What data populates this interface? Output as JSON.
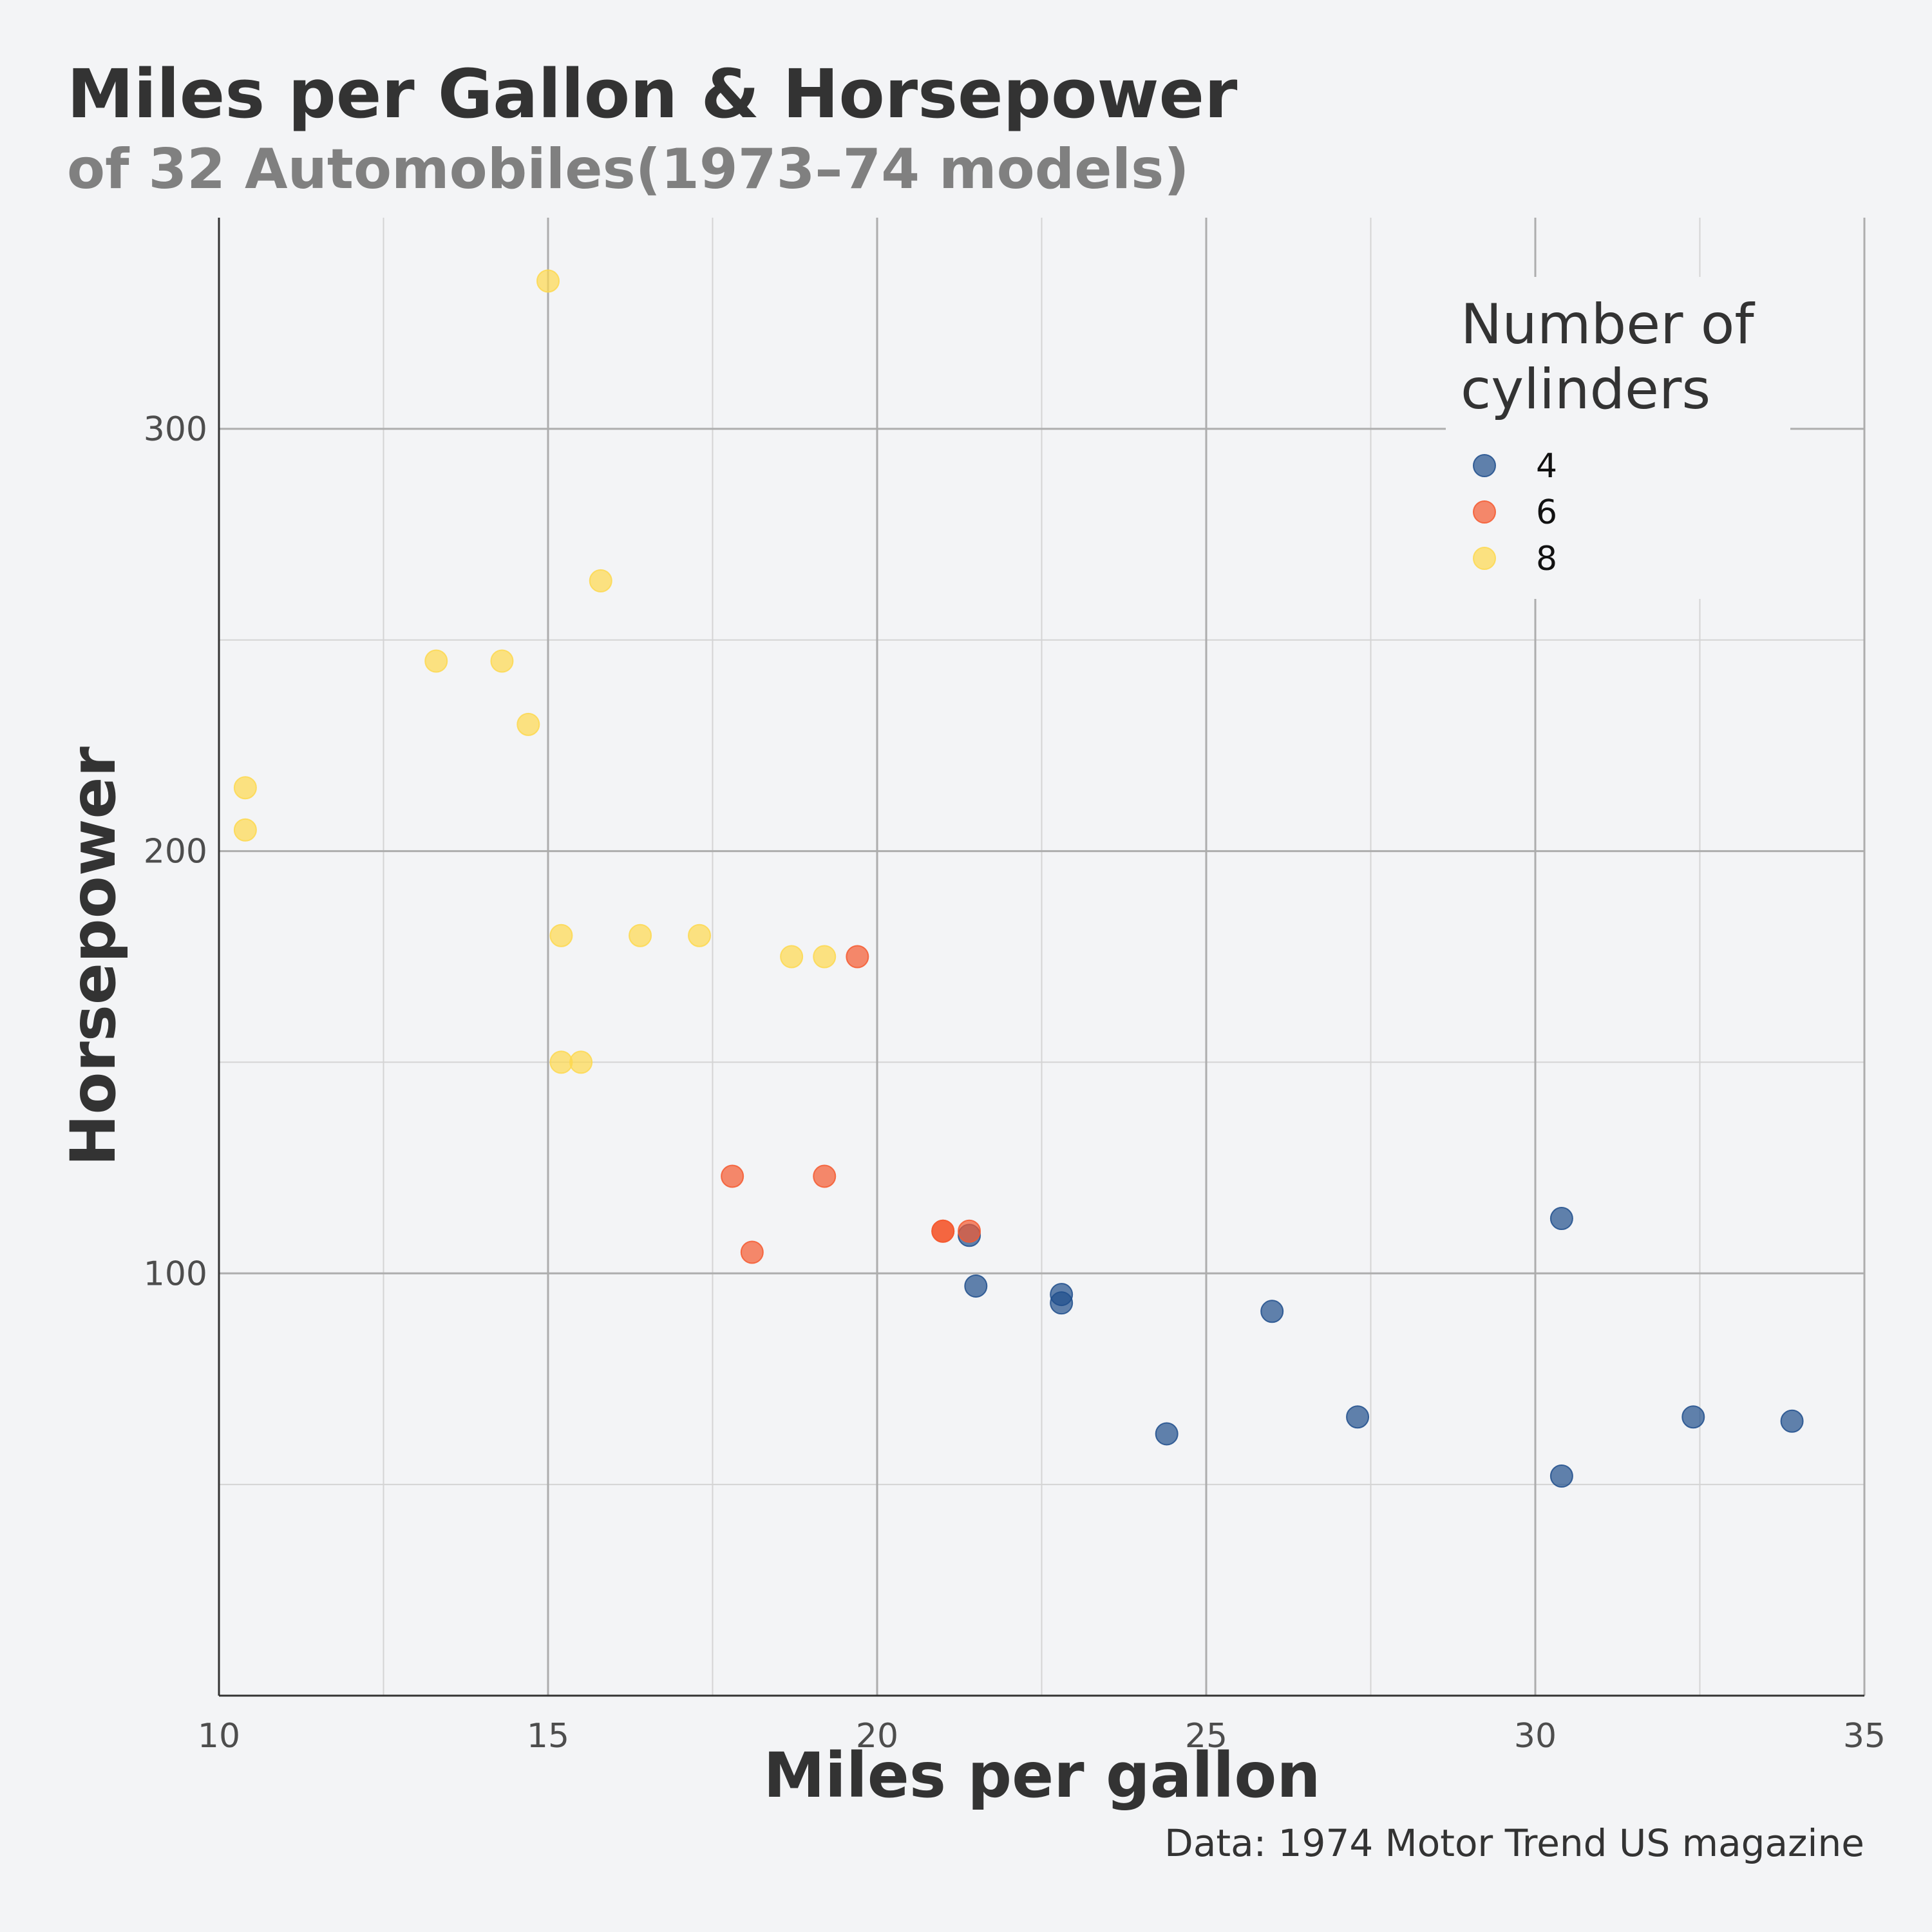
{
  "chart_data": {
    "type": "scatter",
    "title": "Miles per Gallon & Horsepower",
    "subtitle": "of 32 Automobiles(1973–74 models)",
    "xlabel": "Miles per gallon",
    "ylabel": "Horsepower",
    "caption": "Data: 1974 Motor Trend US magazine",
    "xlim": [
      10,
      35
    ],
    "ylim": [
      0,
      350
    ],
    "x_ticks": [
      10,
      15,
      20,
      25,
      30,
      35
    ],
    "y_ticks": [
      100,
      200,
      300
    ],
    "grid": true,
    "legend": {
      "title_lines": [
        "Number of",
        "cylinders"
      ],
      "placement": "top-right"
    },
    "series": [
      {
        "name": "4",
        "color": "#1f4e8c",
        "points": [
          {
            "x": 22.8,
            "y": 93
          },
          {
            "x": 24.4,
            "y": 62
          },
          {
            "x": 22.8,
            "y": 95
          },
          {
            "x": 32.4,
            "y": 66
          },
          {
            "x": 30.4,
            "y": 52
          },
          {
            "x": 33.9,
            "y": 65
          },
          {
            "x": 21.5,
            "y": 97
          },
          {
            "x": 27.3,
            "y": 66
          },
          {
            "x": 26.0,
            "y": 91
          },
          {
            "x": 30.4,
            "y": 113
          },
          {
            "x": 21.4,
            "y": 109
          }
        ]
      },
      {
        "name": "6",
        "color": "#f4592f",
        "points": [
          {
            "x": 21.0,
            "y": 110
          },
          {
            "x": 21.0,
            "y": 110
          },
          {
            "x": 21.4,
            "y": 110
          },
          {
            "x": 18.1,
            "y": 105
          },
          {
            "x": 19.2,
            "y": 123
          },
          {
            "x": 17.8,
            "y": 123
          },
          {
            "x": 19.7,
            "y": 175
          }
        ]
      },
      {
        "name": "8",
        "color": "#fdd84f",
        "points": [
          {
            "x": 18.7,
            "y": 175
          },
          {
            "x": 14.3,
            "y": 245
          },
          {
            "x": 16.4,
            "y": 180
          },
          {
            "x": 17.3,
            "y": 180
          },
          {
            "x": 15.2,
            "y": 180
          },
          {
            "x": 10.4,
            "y": 205
          },
          {
            "x": 10.4,
            "y": 215
          },
          {
            "x": 14.7,
            "y": 230
          },
          {
            "x": 15.5,
            "y": 150
          },
          {
            "x": 15.2,
            "y": 150
          },
          {
            "x": 13.3,
            "y": 245
          },
          {
            "x": 19.2,
            "y": 175
          },
          {
            "x": 15.8,
            "y": 264
          },
          {
            "x": 15.0,
            "y": 335
          }
        ]
      }
    ]
  }
}
